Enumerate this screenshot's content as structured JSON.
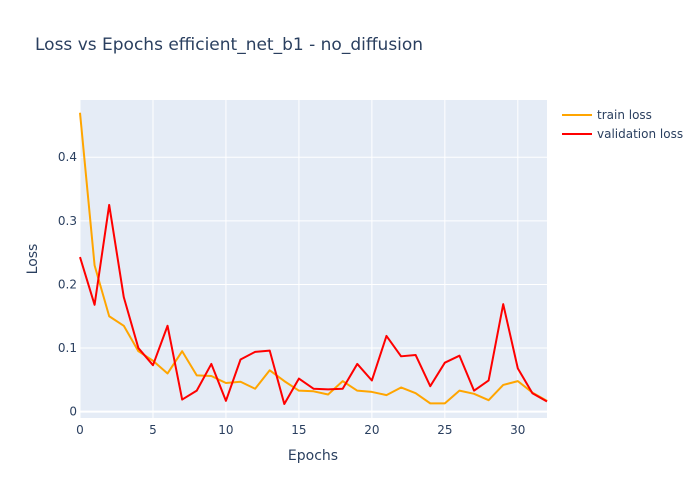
{
  "chart_data": {
    "type": "line",
    "title": "Loss vs Epochs efficient_net_b1 - no_diffusion",
    "xlabel": "Epochs",
    "ylabel": "Loss",
    "xlim": [
      0,
      32
    ],
    "ylim": [
      -0.01,
      0.49
    ],
    "xticks": [
      0,
      5,
      10,
      15,
      20,
      25,
      30
    ],
    "yticks": [
      0,
      0.1,
      0.2,
      0.3,
      0.4
    ],
    "ytick_labels": [
      "0",
      "0.1",
      "0.2",
      "0.3",
      "0.4"
    ],
    "grid": true,
    "legend_position": "top-right",
    "x": [
      0,
      1,
      2,
      3,
      4,
      5,
      6,
      7,
      8,
      9,
      10,
      11,
      12,
      13,
      14,
      15,
      16,
      17,
      18,
      19,
      20,
      21,
      22,
      23,
      24,
      25,
      26,
      27,
      28,
      29,
      30,
      31,
      32
    ],
    "series": [
      {
        "name": "train loss",
        "color": "#FFA500",
        "values": [
          0.47,
          0.23,
          0.15,
          0.135,
          0.095,
          0.08,
          0.06,
          0.095,
          0.057,
          0.056,
          0.045,
          0.047,
          0.036,
          0.065,
          0.048,
          0.033,
          0.032,
          0.027,
          0.048,
          0.033,
          0.031,
          0.026,
          0.038,
          0.029,
          0.013,
          0.013,
          0.033,
          0.028,
          0.018,
          0.042,
          0.048,
          0.03,
          0.017
        ]
      },
      {
        "name": "validation loss",
        "color": "#FF0000",
        "values": [
          0.243,
          0.168,
          0.325,
          0.18,
          0.1,
          0.073,
          0.135,
          0.019,
          0.033,
          0.075,
          0.017,
          0.082,
          0.094,
          0.096,
          0.012,
          0.052,
          0.036,
          0.035,
          0.036,
          0.075,
          0.049,
          0.119,
          0.087,
          0.089,
          0.04,
          0.077,
          0.088,
          0.033,
          0.049,
          0.169,
          0.068,
          0.029,
          0.016
        ]
      }
    ]
  }
}
